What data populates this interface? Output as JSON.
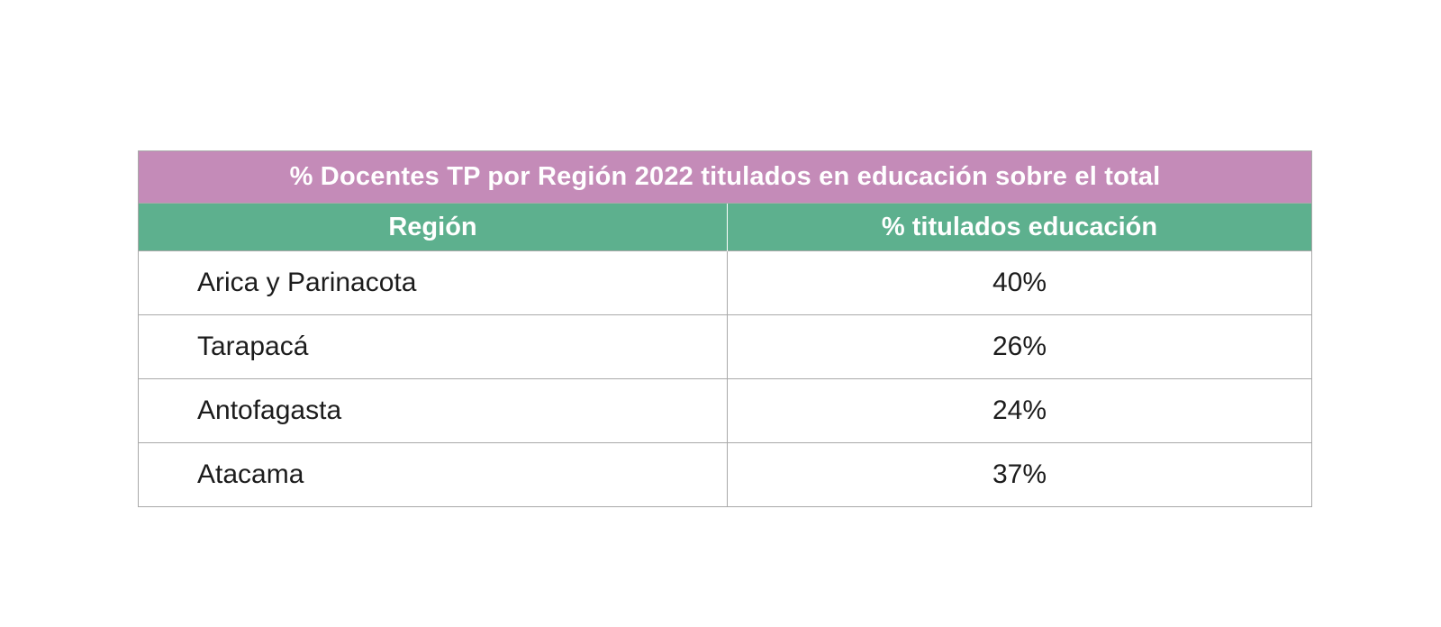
{
  "chart_data": {
    "type": "table",
    "title": "% Docentes TP por Región 2022 titulados en educación sobre el total",
    "columns": [
      "Región",
      "% titulados educación"
    ],
    "rows": [
      {
        "region": "Arica y Parinacota",
        "value": "40%"
      },
      {
        "region": "Tarapacá",
        "value": "26%"
      },
      {
        "region": "Antofagasta",
        "value": "24%"
      },
      {
        "region": "Atacama",
        "value": "37%"
      }
    ]
  },
  "colors": {
    "title_bg": "#c48bb8",
    "header_bg": "#5db08e",
    "header_text": "#ffffff",
    "border": "#a9a9a9"
  }
}
